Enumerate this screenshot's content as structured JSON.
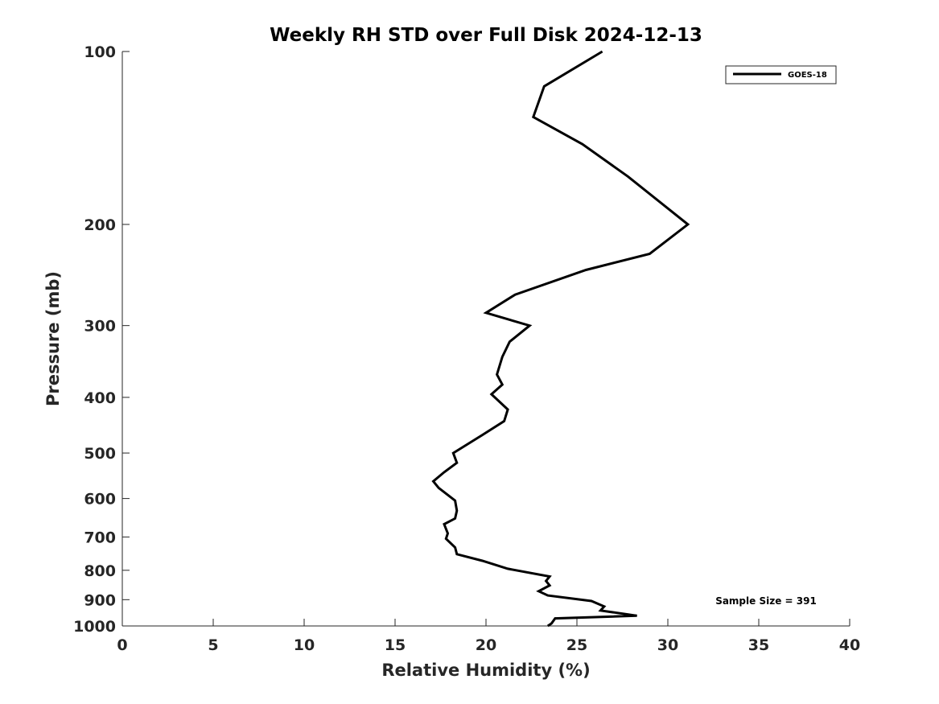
{
  "chart_data": {
    "type": "line",
    "title": "Weekly RH STD over Full Disk 2024-12-13",
    "xlabel": "Relative Humidity (%)",
    "ylabel": "Pressure (mb)",
    "xlim": [
      0,
      40
    ],
    "ylim": [
      1000,
      100
    ],
    "yscale": "log",
    "x_ticks": [
      0,
      5,
      10,
      15,
      20,
      25,
      30,
      35,
      40
    ],
    "x_tick_labels": [
      "0",
      "5",
      "10",
      "15",
      "20",
      "25",
      "30",
      "35",
      "40"
    ],
    "y_ticks": [
      100,
      200,
      300,
      400,
      500,
      600,
      700,
      800,
      900,
      1000
    ],
    "y_tick_labels": [
      "100",
      "200",
      "300",
      "400",
      "500",
      "600",
      "700",
      "800",
      "900",
      "1000"
    ],
    "grid": false,
    "legend_position": "top-right",
    "annotation": "Sample Size = 391",
    "series": [
      {
        "name": "GOES-18",
        "color": "#000000",
        "points": [
          [
            26.4,
            100
          ],
          [
            23.2,
            115
          ],
          [
            22.6,
            130
          ],
          [
            25.3,
            145
          ],
          [
            27.8,
            165
          ],
          [
            31.1,
            200
          ],
          [
            29.0,
            225
          ],
          [
            25.5,
            240
          ],
          [
            21.6,
            265
          ],
          [
            20.0,
            285
          ],
          [
            22.4,
            300
          ],
          [
            21.3,
            320
          ],
          [
            20.9,
            340
          ],
          [
            20.6,
            365
          ],
          [
            20.9,
            380
          ],
          [
            20.3,
            395
          ],
          [
            21.2,
            420
          ],
          [
            21.0,
            440
          ],
          [
            19.8,
            465
          ],
          [
            18.2,
            500
          ],
          [
            18.4,
            520
          ],
          [
            17.7,
            540
          ],
          [
            17.1,
            560
          ],
          [
            17.4,
            575
          ],
          [
            18.3,
            605
          ],
          [
            18.4,
            630
          ],
          [
            18.3,
            650
          ],
          [
            17.7,
            665
          ],
          [
            17.9,
            690
          ],
          [
            17.8,
            705
          ],
          [
            18.3,
            730
          ],
          [
            18.4,
            750
          ],
          [
            19.8,
            770
          ],
          [
            21.2,
            795
          ],
          [
            23.5,
            820
          ],
          [
            23.3,
            835
          ],
          [
            23.5,
            850
          ],
          [
            22.9,
            870
          ],
          [
            23.4,
            885
          ],
          [
            25.8,
            905
          ],
          [
            26.5,
            925
          ],
          [
            26.3,
            940
          ],
          [
            28.3,
            960
          ],
          [
            23.8,
            970
          ],
          [
            23.6,
            990
          ],
          [
            23.4,
            1000
          ]
        ]
      }
    ]
  }
}
